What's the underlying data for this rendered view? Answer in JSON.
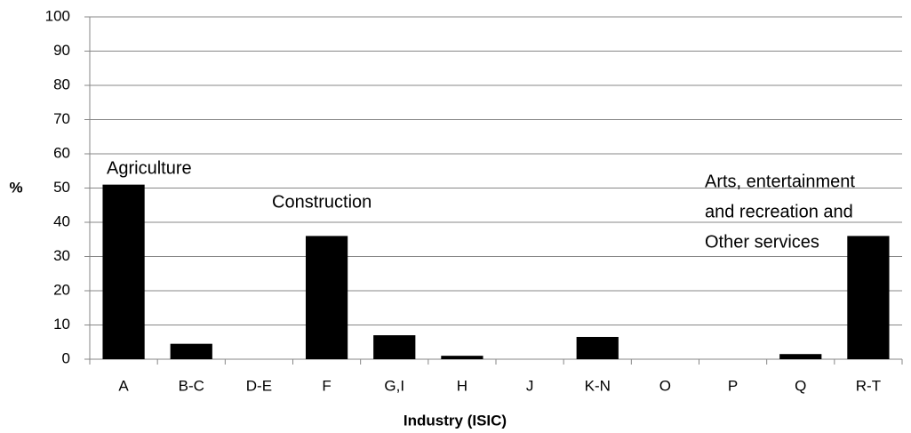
{
  "chart_data": {
    "type": "bar",
    "x_label": "Industry (ISIC)",
    "y_label": "%",
    "categories": [
      "A",
      "B-C",
      "D-E",
      "F",
      "G,I",
      "H",
      "J",
      "K-N",
      "O",
      "P",
      "Q",
      "R-T"
    ],
    "values": [
      51,
      4.5,
      0,
      36,
      7,
      1,
      0,
      6.5,
      0,
      0,
      1.5,
      36
    ],
    "color": "#000000",
    "ylim": [
      0,
      100
    ],
    "yticks": [
      0,
      10,
      20,
      30,
      40,
      50,
      60,
      70,
      80,
      90,
      100
    ],
    "grid": true,
    "annotations": [
      {
        "lines": [
          "Agriculture"
        ]
      },
      {
        "lines": [
          "Construction"
        ]
      },
      {
        "lines": [
          "Arts, entertainment",
          "and recreation and",
          "Other services"
        ]
      }
    ]
  }
}
